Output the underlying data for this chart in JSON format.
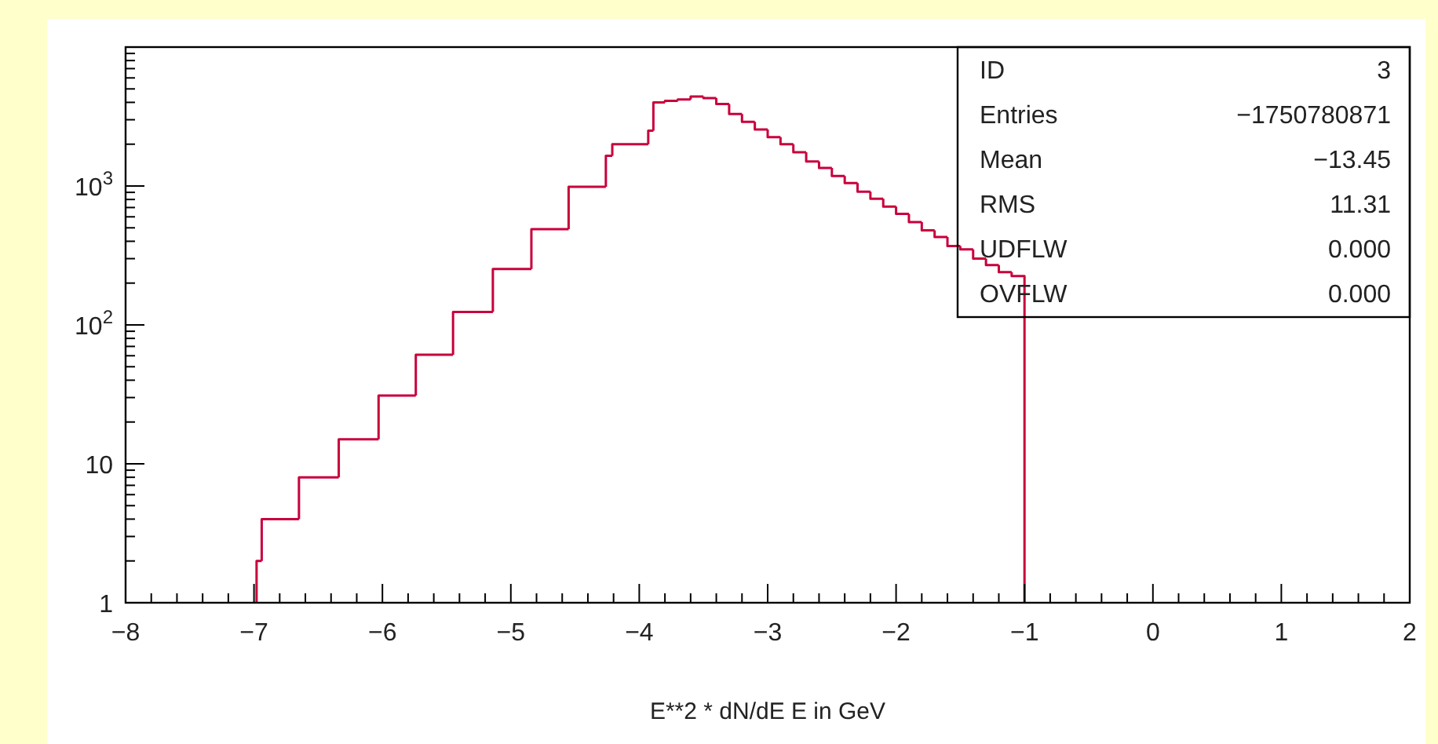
{
  "chart_data": {
    "type": "histogram",
    "xlabel": "E**2 * dN/dE E in GeV",
    "bins": [
      -6.98,
      -6.94,
      -6.65,
      -6.34,
      -6.03,
      -5.74,
      -5.45,
      -5.14,
      -4.84,
      -4.55,
      -4.26,
      -4.21,
      -3.93,
      -3.89,
      -3.8,
      -3.7,
      -3.6,
      -3.5,
      -3.4,
      -3.3,
      -3.2,
      -3.1,
      -3.0,
      -2.9,
      -2.8,
      -2.7,
      -2.6,
      -2.5,
      -2.4,
      -2.3,
      -2.2,
      -2.1,
      -2.0,
      -1.9,
      -1.8,
      -1.7,
      -1.6,
      -1.5,
      -1.4,
      -1.3,
      -1.2,
      -1.1,
      -1.0
    ],
    "values": [
      2,
      4,
      8,
      15,
      31,
      61,
      124,
      253,
      489,
      987,
      1650,
      2000,
      2500,
      4000,
      4100,
      4200,
      4400,
      4300,
      3900,
      3300,
      2900,
      2550,
      2250,
      2000,
      1750,
      1500,
      1350,
      1180,
      1050,
      910,
      810,
      710,
      630,
      550,
      480,
      430,
      370,
      350,
      300,
      270,
      240,
      225
    ],
    "color": "#c8003c",
    "log": "y",
    "grid": false,
    "xlim": [
      -8,
      2
    ],
    "ylim": [
      1,
      10000
    ],
    "xticks": [
      -8,
      -7,
      -6,
      -5,
      -4,
      -3,
      -2,
      -1,
      0,
      1,
      2,
      {
        "value": -7.8,
        "label": null
      },
      {
        "value": -7.6,
        "label": null
      },
      {
        "value": -7.4,
        "label": null
      },
      {
        "value": -7.2,
        "label": null
      },
      {
        "value": -6.8,
        "label": null
      },
      {
        "value": -6.6,
        "label": null
      },
      {
        "value": -6.4,
        "label": null
      },
      {
        "value": -6.2,
        "label": null
      },
      {
        "value": -5.8,
        "label": null
      },
      {
        "value": -5.6,
        "label": null
      },
      {
        "value": -5.4,
        "label": null
      },
      {
        "value": -5.2,
        "label": null
      },
      {
        "value": -4.8,
        "label": null
      },
      {
        "value": -4.6,
        "label": null
      },
      {
        "value": -4.4,
        "label": null
      },
      {
        "value": -4.2,
        "label": null
      },
      {
        "value": -3.8,
        "label": null
      },
      {
        "value": -3.6,
        "label": null
      },
      {
        "value": -3.4,
        "label": null
      },
      {
        "value": -3.2,
        "label": null
      },
      {
        "value": -2.8,
        "label": null
      },
      {
        "value": -2.6,
        "label": null
      },
      {
        "value": -2.4,
        "label": null
      },
      {
        "value": -2.2,
        "label": null
      },
      {
        "value": -1.8,
        "label": null
      },
      {
        "value": -1.6,
        "label": null
      },
      {
        "value": -1.4,
        "label": null
      },
      {
        "value": -1.2,
        "label": null
      },
      {
        "value": -0.8,
        "label": null
      },
      {
        "value": -0.6,
        "label": null
      },
      {
        "value": -0.4,
        "label": null
      },
      {
        "value": -0.2,
        "label": null
      },
      {
        "value": 0.2,
        "label": null
      },
      {
        "value": 0.4,
        "label": null
      },
      {
        "value": 0.6,
        "label": null
      },
      {
        "value": 0.8,
        "label": null
      },
      {
        "value": 1.2,
        "label": null
      },
      {
        "value": 1.4,
        "label": null
      },
      {
        "value": 1.6,
        "label": null
      },
      {
        "value": 1.8,
        "label": null
      }
    ],
    "yticks": [
      1,
      10,
      {
        "value": 100,
        "label": "10$^{2}$"
      },
      {
        "value": 1000,
        "label": "10$^{3}$"
      },
      {
        "value": 2,
        "label": null
      },
      {
        "value": 3,
        "label": null
      },
      {
        "value": 4,
        "label": null
      },
      {
        "value": 5,
        "label": null
      },
      {
        "value": 6,
        "label": null
      },
      {
        "value": 7,
        "label": null
      },
      {
        "value": 8,
        "label": null
      },
      {
        "value": 9,
        "label": null
      },
      {
        "value": 20,
        "label": null
      },
      {
        "value": 30,
        "label": null
      },
      {
        "value": 40,
        "label": null
      },
      {
        "value": 50,
        "label": null
      },
      {
        "value": 60,
        "label": null
      },
      {
        "value": 70,
        "label": null
      },
      {
        "value": 80,
        "label": null
      },
      {
        "value": 90,
        "label": null
      },
      {
        "value": 200,
        "label": null
      },
      {
        "value": 300,
        "label": null
      },
      {
        "value": 400,
        "label": null
      },
      {
        "value": 500,
        "label": null
      },
      {
        "value": 600,
        "label": null
      },
      {
        "value": 700,
        "label": null
      },
      {
        "value": 800,
        "label": null
      },
      {
        "value": 900,
        "label": null
      },
      {
        "value": 2000,
        "label": null
      },
      {
        "value": 3000,
        "label": null
      },
      {
        "value": 4000,
        "label": null
      },
      {
        "value": 5000,
        "label": null
      },
      {
        "value": 6000,
        "label": null
      },
      {
        "value": 7000,
        "label": null
      },
      {
        "value": 8000,
        "label": null
      },
      {
        "value": 9000,
        "label": null
      }
    ],
    "annotations": [
      "ID",
      "3",
      "Entries",
      "−1750780871",
      "Mean",
      "−13.45",
      "RMS",
      "11.31",
      "UDFLW",
      "0.000",
      "OVFLW",
      "0.000"
    ]
  }
}
